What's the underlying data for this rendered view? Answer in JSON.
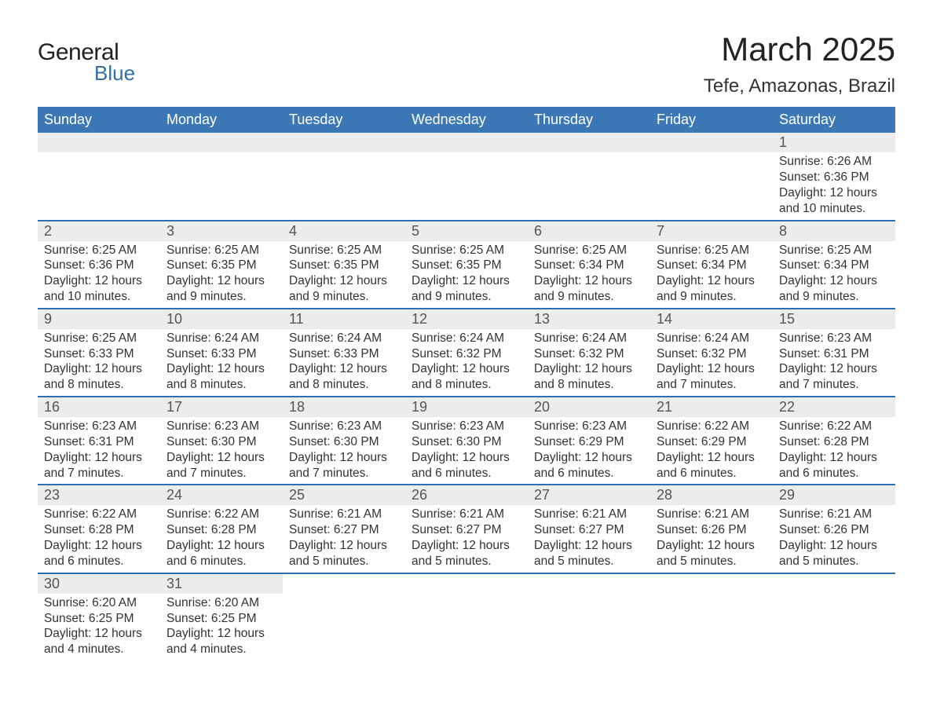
{
  "logo": {
    "text_general": "General",
    "text_blue": "Blue",
    "sail_color": "#2f6fae"
  },
  "title": {
    "month": "March 2025",
    "location": "Tefe, Amazonas, Brazil"
  },
  "colors": {
    "header_bg": "#3b78b5",
    "header_text": "#ffffff",
    "row_divider": "#2f6fae",
    "daynum_bg": "#ececec",
    "text": "#333333"
  },
  "days_of_week": [
    "Sunday",
    "Monday",
    "Tuesday",
    "Wednesday",
    "Thursday",
    "Friday",
    "Saturday"
  ],
  "weeks": [
    [
      {
        "num": "",
        "lines": [
          "",
          "",
          "",
          ""
        ]
      },
      {
        "num": "",
        "lines": [
          "",
          "",
          "",
          ""
        ]
      },
      {
        "num": "",
        "lines": [
          "",
          "",
          "",
          ""
        ]
      },
      {
        "num": "",
        "lines": [
          "",
          "",
          "",
          ""
        ]
      },
      {
        "num": "",
        "lines": [
          "",
          "",
          "",
          ""
        ]
      },
      {
        "num": "",
        "lines": [
          "",
          "",
          "",
          ""
        ]
      },
      {
        "num": "1",
        "lines": [
          "Sunrise: 6:26 AM",
          "Sunset: 6:36 PM",
          "Daylight: 12 hours",
          "and 10 minutes."
        ]
      }
    ],
    [
      {
        "num": "2",
        "lines": [
          "Sunrise: 6:25 AM",
          "Sunset: 6:36 PM",
          "Daylight: 12 hours",
          "and 10 minutes."
        ]
      },
      {
        "num": "3",
        "lines": [
          "Sunrise: 6:25 AM",
          "Sunset: 6:35 PM",
          "Daylight: 12 hours",
          "and 9 minutes."
        ]
      },
      {
        "num": "4",
        "lines": [
          "Sunrise: 6:25 AM",
          "Sunset: 6:35 PM",
          "Daylight: 12 hours",
          "and 9 minutes."
        ]
      },
      {
        "num": "5",
        "lines": [
          "Sunrise: 6:25 AM",
          "Sunset: 6:35 PM",
          "Daylight: 12 hours",
          "and 9 minutes."
        ]
      },
      {
        "num": "6",
        "lines": [
          "Sunrise: 6:25 AM",
          "Sunset: 6:34 PM",
          "Daylight: 12 hours",
          "and 9 minutes."
        ]
      },
      {
        "num": "7",
        "lines": [
          "Sunrise: 6:25 AM",
          "Sunset: 6:34 PM",
          "Daylight: 12 hours",
          "and 9 minutes."
        ]
      },
      {
        "num": "8",
        "lines": [
          "Sunrise: 6:25 AM",
          "Sunset: 6:34 PM",
          "Daylight: 12 hours",
          "and 9 minutes."
        ]
      }
    ],
    [
      {
        "num": "9",
        "lines": [
          "Sunrise: 6:25 AM",
          "Sunset: 6:33 PM",
          "Daylight: 12 hours",
          "and 8 minutes."
        ]
      },
      {
        "num": "10",
        "lines": [
          "Sunrise: 6:24 AM",
          "Sunset: 6:33 PM",
          "Daylight: 12 hours",
          "and 8 minutes."
        ]
      },
      {
        "num": "11",
        "lines": [
          "Sunrise: 6:24 AM",
          "Sunset: 6:33 PM",
          "Daylight: 12 hours",
          "and 8 minutes."
        ]
      },
      {
        "num": "12",
        "lines": [
          "Sunrise: 6:24 AM",
          "Sunset: 6:32 PM",
          "Daylight: 12 hours",
          "and 8 minutes."
        ]
      },
      {
        "num": "13",
        "lines": [
          "Sunrise: 6:24 AM",
          "Sunset: 6:32 PM",
          "Daylight: 12 hours",
          "and 8 minutes."
        ]
      },
      {
        "num": "14",
        "lines": [
          "Sunrise: 6:24 AM",
          "Sunset: 6:32 PM",
          "Daylight: 12 hours",
          "and 7 minutes."
        ]
      },
      {
        "num": "15",
        "lines": [
          "Sunrise: 6:23 AM",
          "Sunset: 6:31 PM",
          "Daylight: 12 hours",
          "and 7 minutes."
        ]
      }
    ],
    [
      {
        "num": "16",
        "lines": [
          "Sunrise: 6:23 AM",
          "Sunset: 6:31 PM",
          "Daylight: 12 hours",
          "and 7 minutes."
        ]
      },
      {
        "num": "17",
        "lines": [
          "Sunrise: 6:23 AM",
          "Sunset: 6:30 PM",
          "Daylight: 12 hours",
          "and 7 minutes."
        ]
      },
      {
        "num": "18",
        "lines": [
          "Sunrise: 6:23 AM",
          "Sunset: 6:30 PM",
          "Daylight: 12 hours",
          "and 7 minutes."
        ]
      },
      {
        "num": "19",
        "lines": [
          "Sunrise: 6:23 AM",
          "Sunset: 6:30 PM",
          "Daylight: 12 hours",
          "and 6 minutes."
        ]
      },
      {
        "num": "20",
        "lines": [
          "Sunrise: 6:23 AM",
          "Sunset: 6:29 PM",
          "Daylight: 12 hours",
          "and 6 minutes."
        ]
      },
      {
        "num": "21",
        "lines": [
          "Sunrise: 6:22 AM",
          "Sunset: 6:29 PM",
          "Daylight: 12 hours",
          "and 6 minutes."
        ]
      },
      {
        "num": "22",
        "lines": [
          "Sunrise: 6:22 AM",
          "Sunset: 6:28 PM",
          "Daylight: 12 hours",
          "and 6 minutes."
        ]
      }
    ],
    [
      {
        "num": "23",
        "lines": [
          "Sunrise: 6:22 AM",
          "Sunset: 6:28 PM",
          "Daylight: 12 hours",
          "and 6 minutes."
        ]
      },
      {
        "num": "24",
        "lines": [
          "Sunrise: 6:22 AM",
          "Sunset: 6:28 PM",
          "Daylight: 12 hours",
          "and 6 minutes."
        ]
      },
      {
        "num": "25",
        "lines": [
          "Sunrise: 6:21 AM",
          "Sunset: 6:27 PM",
          "Daylight: 12 hours",
          "and 5 minutes."
        ]
      },
      {
        "num": "26",
        "lines": [
          "Sunrise: 6:21 AM",
          "Sunset: 6:27 PM",
          "Daylight: 12 hours",
          "and 5 minutes."
        ]
      },
      {
        "num": "27",
        "lines": [
          "Sunrise: 6:21 AM",
          "Sunset: 6:27 PM",
          "Daylight: 12 hours",
          "and 5 minutes."
        ]
      },
      {
        "num": "28",
        "lines": [
          "Sunrise: 6:21 AM",
          "Sunset: 6:26 PM",
          "Daylight: 12 hours",
          "and 5 minutes."
        ]
      },
      {
        "num": "29",
        "lines": [
          "Sunrise: 6:21 AM",
          "Sunset: 6:26 PM",
          "Daylight: 12 hours",
          "and 5 minutes."
        ]
      }
    ],
    [
      {
        "num": "30",
        "lines": [
          "Sunrise: 6:20 AM",
          "Sunset: 6:25 PM",
          "Daylight: 12 hours",
          "and 4 minutes."
        ]
      },
      {
        "num": "31",
        "lines": [
          "Sunrise: 6:20 AM",
          "Sunset: 6:25 PM",
          "Daylight: 12 hours",
          "and 4 minutes."
        ]
      },
      {
        "num": "",
        "lines": [
          "",
          "",
          "",
          ""
        ]
      },
      {
        "num": "",
        "lines": [
          "",
          "",
          "",
          ""
        ]
      },
      {
        "num": "",
        "lines": [
          "",
          "",
          "",
          ""
        ]
      },
      {
        "num": "",
        "lines": [
          "",
          "",
          "",
          ""
        ]
      },
      {
        "num": "",
        "lines": [
          "",
          "",
          "",
          ""
        ]
      }
    ]
  ]
}
